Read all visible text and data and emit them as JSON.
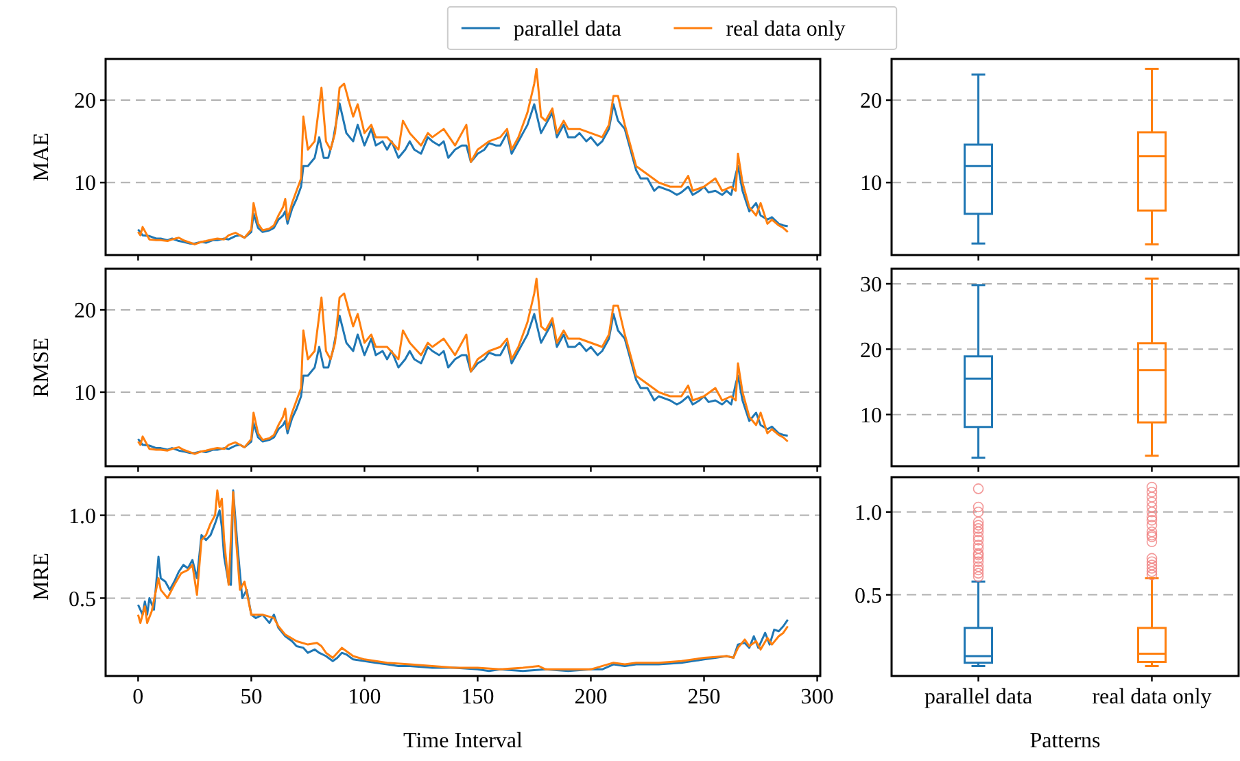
{
  "chart_data": [
    {
      "type": "line",
      "ylabel": "MAE",
      "xlim": [
        -14.35,
        301.35
      ],
      "ylim": [
        1.2,
        25
      ],
      "xticks": [
        0,
        50,
        100,
        150,
        200,
        250,
        300
      ],
      "yticks": [
        10,
        20
      ],
      "grid": "y",
      "tick_labels": "y",
      "legend": "top",
      "line_style": "solid",
      "series": [
        {
          "name": "parallel data",
          "color": "#1f77b4",
          "x": [
            0,
            2,
            5,
            8,
            10,
            13,
            15,
            18,
            20,
            23,
            25,
            28,
            30,
            33,
            35,
            38,
            40,
            43,
            45,
            47,
            50,
            51,
            53,
            55,
            58,
            60,
            62,
            64,
            65,
            66,
            68,
            70,
            72,
            73,
            75,
            78,
            80,
            82,
            84,
            86,
            89,
            92,
            95,
            97,
            100,
            103,
            105,
            108,
            110,
            112,
            115,
            118,
            120,
            122,
            125,
            128,
            130,
            133,
            135,
            137,
            140,
            143,
            145,
            147,
            150,
            153,
            155,
            158,
            160,
            163,
            165,
            168,
            172,
            175,
            178,
            180,
            183,
            185,
            188,
            190,
            193,
            195,
            198,
            200,
            203,
            205,
            208,
            210,
            212,
            215,
            218,
            220,
            222,
            225,
            228,
            230,
            233,
            235,
            238,
            240,
            243,
            245,
            248,
            250,
            252,
            255,
            258,
            260,
            262,
            264,
            265,
            267,
            270,
            273,
            275,
            278,
            280,
            283,
            285,
            287
          ],
          "values": [
            4.3,
            3.6,
            3.5,
            3.2,
            3.2,
            3.0,
            3.2,
            2.9,
            2.8,
            2.6,
            2.6,
            2.8,
            2.7,
            3.0,
            3.0,
            3.2,
            3.1,
            3.5,
            3.6,
            3.3,
            4.0,
            6.2,
            4.5,
            4.0,
            4.2,
            4.5,
            5.5,
            6.0,
            6.5,
            5.0,
            6.8,
            8.0,
            9.5,
            12.0,
            12.0,
            13.0,
            15.5,
            13.0,
            13.0,
            15.0,
            19.6,
            16.0,
            15.0,
            17.0,
            14.5,
            16.5,
            14.5,
            15.0,
            14.0,
            15.0,
            13.0,
            14.0,
            15.0,
            14.0,
            13.5,
            15.5,
            15.0,
            14.5,
            15.0,
            13.0,
            14.0,
            14.5,
            14.5,
            12.5,
            13.5,
            14.0,
            14.8,
            14.5,
            14.5,
            16.0,
            13.5,
            15.0,
            17.0,
            19.5,
            16.0,
            17.0,
            18.5,
            15.5,
            17.0,
            15.5,
            15.5,
            16.0,
            15.0,
            15.5,
            14.5,
            15.0,
            16.5,
            19.5,
            17.5,
            16.5,
            13.5,
            11.5,
            10.5,
            10.5,
            9.0,
            9.5,
            9.2,
            9.0,
            8.5,
            8.8,
            9.5,
            8.5,
            9.0,
            9.5,
            8.8,
            9.0,
            8.5,
            9.0,
            8.5,
            11.0,
            12.0,
            9.0,
            6.5,
            7.5,
            6.0,
            5.5,
            5.8,
            5.0,
            4.8,
            4.7
          ]
        },
        {
          "name": "real data only",
          "color": "#ff7f0e",
          "x": [
            0,
            1,
            2,
            5,
            8,
            10,
            13,
            15,
            18,
            20,
            23,
            25,
            28,
            30,
            33,
            35,
            38,
            40,
            43,
            45,
            47,
            50,
            51,
            53,
            55,
            58,
            60,
            62,
            64,
            65,
            66,
            68,
            70,
            72,
            73,
            75,
            78,
            81,
            83,
            85,
            87,
            89,
            91,
            93,
            95,
            97,
            100,
            103,
            105,
            110,
            115,
            117,
            120,
            125,
            128,
            130,
            135,
            140,
            145,
            147,
            150,
            155,
            160,
            163,
            165,
            168,
            172,
            175,
            176,
            178,
            180,
            183,
            185,
            188,
            190,
            195,
            200,
            205,
            208,
            210,
            212,
            215,
            218,
            220,
            225,
            230,
            235,
            240,
            243,
            245,
            250,
            255,
            258,
            262,
            264,
            265,
            267,
            270,
            273,
            275,
            278,
            280,
            283,
            285,
            287
          ],
          "values": [
            4.0,
            3.6,
            4.6,
            3.1,
            3.0,
            3.0,
            2.9,
            3.1,
            3.3,
            3.0,
            2.7,
            2.5,
            2.8,
            2.9,
            3.1,
            3.2,
            3.1,
            3.6,
            3.9,
            3.6,
            3.3,
            4.3,
            7.5,
            5.0,
            4.2,
            4.4,
            4.8,
            6.0,
            7.0,
            8.0,
            5.5,
            7.5,
            9.0,
            10.5,
            18.0,
            14.0,
            15.0,
            21.5,
            15.0,
            14.0,
            16.0,
            21.5,
            22.0,
            20.0,
            18.0,
            19.5,
            16.0,
            17.0,
            15.5,
            15.5,
            14.0,
            17.5,
            16.0,
            14.5,
            16.0,
            15.5,
            16.5,
            14.5,
            17.0,
            12.5,
            14.0,
            15.0,
            15.5,
            16.5,
            14.0,
            15.5,
            18.5,
            22.0,
            23.8,
            18.0,
            17.5,
            19.0,
            16.0,
            17.5,
            16.5,
            16.5,
            16.0,
            15.5,
            17.0,
            20.5,
            20.5,
            17.0,
            14.0,
            12.0,
            11.0,
            10.0,
            9.5,
            9.5,
            10.8,
            9.0,
            9.5,
            10.5,
            9.0,
            9.5,
            9.0,
            13.5,
            10.0,
            7.0,
            6.0,
            7.5,
            5.0,
            5.5,
            4.8,
            4.5,
            4.0
          ]
        }
      ]
    },
    {
      "type": "box",
      "categories": [
        null,
        null
      ],
      "colors": [
        "#1f77b4",
        "#ff7f0e"
      ],
      "ylim": [
        1.2,
        25
      ],
      "yticks": [
        10,
        20
      ],
      "grid": "y",
      "tick_labels": "y",
      "boxes": [
        {
          "low": 2.6,
          "q1": 6.2,
          "median": 12.0,
          "q3": 14.6,
          "high": 23.1
        },
        {
          "low": 2.5,
          "q1": 6.6,
          "median": 13.2,
          "q3": 16.1,
          "high": 23.8
        }
      ]
    },
    {
      "type": "line",
      "ylabel": "RMSE",
      "xlim": [
        -14.35,
        301.35
      ],
      "ylim": [
        1.0,
        25
      ],
      "xticks": [
        0,
        50,
        100,
        150,
        200,
        250,
        300
      ],
      "yticks": [
        10,
        20
      ],
      "grid": "y",
      "tick_labels": "y",
      "line_style": "solid",
      "series": [
        {
          "color": "#1f77b4",
          "x": [
            0,
            2,
            5,
            8,
            10,
            13,
            15,
            18,
            20,
            23,
            25,
            28,
            30,
            33,
            35,
            38,
            40,
            43,
            45,
            47,
            50,
            51,
            53,
            55,
            58,
            60,
            62,
            64,
            65,
            66,
            68,
            70,
            72,
            73,
            75,
            78,
            80,
            82,
            84,
            86,
            89,
            92,
            95,
            97,
            100,
            103,
            105,
            108,
            110,
            112,
            115,
            118,
            120,
            122,
            125,
            128,
            130,
            133,
            135,
            137,
            140,
            143,
            145,
            147,
            150,
            153,
            155,
            158,
            160,
            163,
            165,
            168,
            172,
            175,
            178,
            180,
            183,
            185,
            188,
            190,
            193,
            195,
            198,
            200,
            203,
            205,
            208,
            210,
            212,
            215,
            218,
            220,
            222,
            225,
            228,
            230,
            233,
            235,
            238,
            240,
            243,
            245,
            248,
            250,
            252,
            255,
            258,
            260,
            262,
            264,
            265,
            267,
            270,
            273,
            275,
            278,
            280,
            283,
            285,
            287
          ],
          "values": [
            4.3,
            3.6,
            3.5,
            3.2,
            3.2,
            3.0,
            3.2,
            2.9,
            2.8,
            2.6,
            2.6,
            2.8,
            2.7,
            3.0,
            3.0,
            3.2,
            3.1,
            3.5,
            3.6,
            3.3,
            4.0,
            6.2,
            4.5,
            4.0,
            4.2,
            4.5,
            5.5,
            6.0,
            6.5,
            5.0,
            6.8,
            8.0,
            9.5,
            12.0,
            12.0,
            13.0,
            15.5,
            13.0,
            13.0,
            15.0,
            19.3,
            16.0,
            15.0,
            17.0,
            14.5,
            16.5,
            14.5,
            15.0,
            14.0,
            15.0,
            13.0,
            14.0,
            15.0,
            14.0,
            13.5,
            15.5,
            15.0,
            14.5,
            15.0,
            13.0,
            14.0,
            14.5,
            14.5,
            12.5,
            13.5,
            14.0,
            14.8,
            14.5,
            14.5,
            16.0,
            13.5,
            15.0,
            17.0,
            19.5,
            16.0,
            17.0,
            18.5,
            15.5,
            17.0,
            15.5,
            15.5,
            16.0,
            15.0,
            15.5,
            14.5,
            15.0,
            16.5,
            19.5,
            17.5,
            16.5,
            13.5,
            11.5,
            10.5,
            10.5,
            9.0,
            9.5,
            9.2,
            9.0,
            8.5,
            8.8,
            9.5,
            8.5,
            9.0,
            9.5,
            8.8,
            9.0,
            8.5,
            9.0,
            8.5,
            11.0,
            12.0,
            9.0,
            6.5,
            7.5,
            6.0,
            5.5,
            5.8,
            5.0,
            4.8,
            4.7
          ]
        },
        {
          "color": "#ff7f0e",
          "x": [
            0,
            1,
            2,
            5,
            8,
            10,
            13,
            15,
            18,
            20,
            23,
            25,
            28,
            30,
            33,
            35,
            38,
            40,
            43,
            45,
            47,
            50,
            51,
            53,
            55,
            58,
            60,
            62,
            64,
            65,
            66,
            68,
            70,
            72,
            73,
            75,
            78,
            81,
            83,
            85,
            87,
            89,
            91,
            93,
            95,
            97,
            100,
            103,
            105,
            110,
            115,
            117,
            120,
            125,
            128,
            130,
            135,
            140,
            145,
            147,
            150,
            155,
            160,
            163,
            165,
            168,
            172,
            175,
            176,
            178,
            180,
            183,
            185,
            188,
            190,
            195,
            200,
            205,
            208,
            210,
            212,
            215,
            218,
            220,
            225,
            230,
            235,
            240,
            243,
            245,
            250,
            255,
            258,
            262,
            264,
            265,
            267,
            270,
            273,
            275,
            278,
            280,
            283,
            285,
            287
          ],
          "values": [
            4.0,
            3.6,
            4.6,
            3.1,
            3.0,
            3.0,
            2.9,
            3.1,
            3.3,
            3.0,
            2.7,
            2.5,
            2.8,
            2.9,
            3.1,
            3.2,
            3.1,
            3.6,
            3.9,
            3.6,
            3.3,
            4.3,
            7.5,
            5.0,
            4.2,
            4.4,
            4.8,
            6.0,
            7.0,
            8.0,
            5.5,
            7.5,
            9.0,
            10.5,
            17.5,
            14.0,
            15.0,
            21.5,
            15.0,
            14.0,
            16.0,
            21.5,
            22.0,
            20.0,
            18.0,
            19.5,
            16.0,
            17.0,
            15.5,
            15.5,
            14.0,
            17.5,
            16.0,
            14.5,
            16.0,
            15.5,
            16.5,
            14.5,
            17.0,
            12.5,
            14.0,
            15.0,
            15.5,
            16.5,
            14.0,
            15.5,
            18.5,
            22.0,
            23.8,
            18.0,
            17.5,
            19.0,
            16.0,
            17.5,
            16.5,
            16.5,
            16.0,
            15.5,
            17.0,
            20.5,
            20.5,
            17.0,
            14.0,
            12.0,
            11.0,
            10.0,
            9.5,
            9.5,
            10.8,
            9.0,
            9.5,
            10.5,
            9.0,
            9.5,
            9.0,
            13.5,
            10.0,
            7.0,
            6.0,
            7.5,
            5.0,
            5.5,
            4.8,
            4.5,
            4.0
          ]
        }
      ]
    },
    {
      "type": "box",
      "categories": [
        null,
        null
      ],
      "colors": [
        "#1f77b4",
        "#ff7f0e"
      ],
      "ylim": [
        2.1,
        32.3
      ],
      "yticks": [
        10,
        20,
        30
      ],
      "grid": "y",
      "tick_labels": "y",
      "boxes": [
        {
          "low": 3.4,
          "q1": 8.1,
          "median": 15.5,
          "q3": 18.9,
          "high": 29.8
        },
        {
          "low": 3.7,
          "q1": 8.8,
          "median": 16.8,
          "q3": 20.9,
          "high": 30.8
        }
      ]
    },
    {
      "type": "line",
      "ylabel": "MRE",
      "xlabel": "Time Interval",
      "xlim": [
        -14.35,
        301.35
      ],
      "ylim": [
        0.03,
        1.23
      ],
      "xticks": [
        0,
        50,
        100,
        150,
        200,
        250,
        300
      ],
      "yticks": [
        0.5,
        {
          "value": 1,
          "label": "1.0"
        }
      ],
      "grid": "y",
      "line_style": "solid",
      "series": [
        {
          "color": "#1f77b4",
          "x": [
            0,
            2,
            3,
            4,
            5,
            7,
            9,
            10,
            12,
            14,
            16,
            18,
            20,
            22,
            24,
            26,
            28,
            30,
            32,
            34,
            36,
            37,
            38,
            40,
            41,
            42,
            44,
            46,
            48,
            50,
            52,
            55,
            58,
            60,
            62,
            65,
            68,
            70,
            73,
            75,
            78,
            80,
            83,
            86,
            88,
            90,
            92,
            95,
            100,
            105,
            110,
            115,
            120,
            130,
            140,
            150,
            155,
            160,
            170,
            180,
            190,
            200,
            205,
            210,
            215,
            220,
            230,
            240,
            250,
            255,
            260,
            263,
            265,
            268,
            270,
            272,
            274,
            277,
            279,
            281,
            283,
            285,
            287
          ],
          "values": [
            0.46,
            0.4,
            0.48,
            0.4,
            0.5,
            0.43,
            0.75,
            0.62,
            0.6,
            0.55,
            0.6,
            0.66,
            0.7,
            0.68,
            0.73,
            0.62,
            0.88,
            0.85,
            0.88,
            0.95,
            1.03,
            0.93,
            0.75,
            0.59,
            0.58,
            1.15,
            0.8,
            0.5,
            0.55,
            0.4,
            0.38,
            0.4,
            0.35,
            0.4,
            0.32,
            0.27,
            0.24,
            0.21,
            0.2,
            0.17,
            0.19,
            0.17,
            0.15,
            0.12,
            0.14,
            0.17,
            0.16,
            0.13,
            0.12,
            0.11,
            0.1,
            0.09,
            0.09,
            0.08,
            0.08,
            0.07,
            0.06,
            0.07,
            0.06,
            0.07,
            0.06,
            0.07,
            0.07,
            0.1,
            0.09,
            0.1,
            0.1,
            0.11,
            0.13,
            0.14,
            0.15,
            0.14,
            0.22,
            0.23,
            0.2,
            0.27,
            0.2,
            0.29,
            0.22,
            0.31,
            0.3,
            0.33,
            0.37
          ]
        },
        {
          "color": "#ff7f0e",
          "x": [
            0,
            1,
            3,
            4,
            6,
            9,
            10,
            13,
            16,
            19,
            22,
            24,
            26,
            28,
            30,
            32,
            34,
            35,
            36,
            37,
            38,
            40,
            42,
            43,
            45,
            47,
            50,
            55,
            60,
            62,
            65,
            70,
            75,
            79,
            81,
            83,
            86,
            90,
            92,
            95,
            100,
            110,
            120,
            130,
            140,
            150,
            160,
            170,
            177,
            180,
            190,
            200,
            210,
            215,
            220,
            230,
            240,
            250,
            260,
            263,
            265,
            268,
            270,
            273,
            275,
            278,
            280,
            283,
            285,
            287
          ],
          "values": [
            0.4,
            0.35,
            0.45,
            0.35,
            0.42,
            0.62,
            0.55,
            0.5,
            0.58,
            0.65,
            0.67,
            0.7,
            0.52,
            0.85,
            0.88,
            0.95,
            1.0,
            1.15,
            1.05,
            1.1,
            0.85,
            0.58,
            1.14,
            0.9,
            0.55,
            0.6,
            0.4,
            0.4,
            0.38,
            0.33,
            0.28,
            0.24,
            0.22,
            0.23,
            0.21,
            0.17,
            0.14,
            0.2,
            0.18,
            0.15,
            0.13,
            0.11,
            0.1,
            0.09,
            0.08,
            0.08,
            0.07,
            0.08,
            0.09,
            0.07,
            0.07,
            0.07,
            0.11,
            0.1,
            0.11,
            0.11,
            0.12,
            0.14,
            0.15,
            0.14,
            0.2,
            0.25,
            0.21,
            0.24,
            0.19,
            0.26,
            0.22,
            0.27,
            0.29,
            0.33
          ]
        }
      ]
    },
    {
      "type": "box",
      "categories": [
        "parallel data",
        "real data only"
      ],
      "colors": [
        "#1f77b4",
        "#ff7f0e"
      ],
      "xlabel": "Patterns",
      "ylim": [
        0.01,
        1.21
      ],
      "yticks": [
        0.5,
        {
          "value": 1,
          "label": "1.0"
        }
      ],
      "grid": "y",
      "boxes": [
        {
          "low": 0.07,
          "q1": 0.09,
          "median": 0.13,
          "q3": 0.3,
          "high": 0.58,
          "outliers": [
            0.61,
            0.63,
            0.65,
            0.67,
            0.7,
            0.72,
            0.74,
            0.75,
            0.78,
            0.8,
            0.83,
            0.85,
            0.88,
            0.9,
            0.92,
            0.94,
            1.0,
            1.03,
            1.14
          ]
        },
        {
          "low": 0.07,
          "q1": 0.095,
          "median": 0.145,
          "q3": 0.3,
          "high": 0.6,
          "outliers": [
            0.62,
            0.64,
            0.66,
            0.68,
            0.7,
            0.72,
            0.82,
            0.85,
            0.86,
            0.88,
            0.92,
            0.95,
            0.97,
            1.0,
            1.03,
            1.06,
            1.09,
            1.12,
            1.15
          ]
        }
      ]
    }
  ]
}
